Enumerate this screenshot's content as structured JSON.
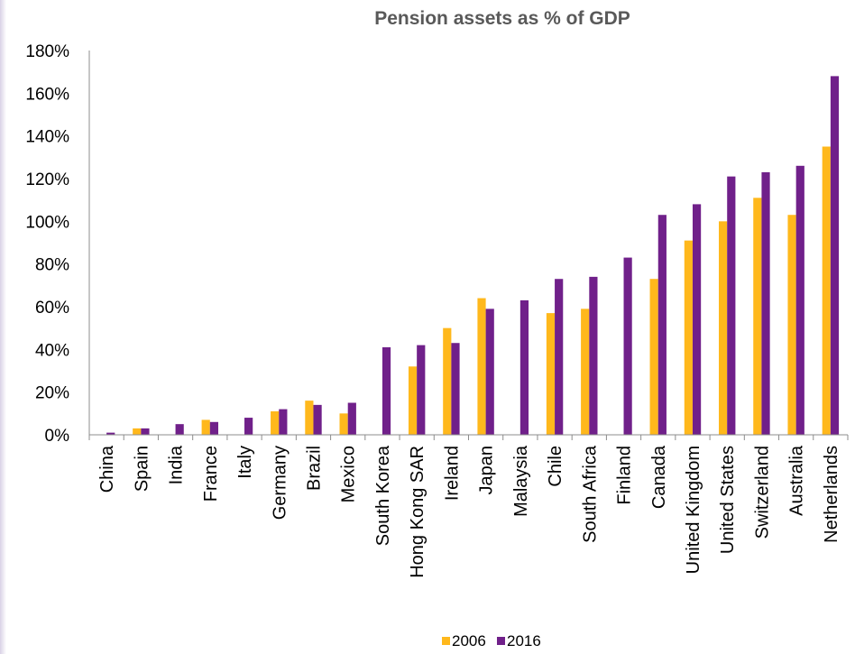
{
  "chart_data": {
    "type": "bar",
    "title": "Pension assets as % of GDP",
    "xlabel": "",
    "ylabel": "",
    "ylim": [
      0,
      180
    ],
    "y_ticks": [
      "0%",
      "20%",
      "40%",
      "60%",
      "80%",
      "100%",
      "120%",
      "140%",
      "160%",
      "180%"
    ],
    "y_tick_values": [
      0,
      20,
      40,
      60,
      80,
      100,
      120,
      140,
      160,
      180
    ],
    "categories": [
      "China",
      "Spain",
      "India",
      "France",
      "Italy",
      "Germany",
      "Brazil",
      "Mexico",
      "South Korea",
      "Hong Kong SAR",
      "Ireland",
      "Japan",
      "Malaysia",
      "Chile",
      "South Africa",
      "Finland",
      "Canada",
      "United Kingdom",
      "United States",
      "Switzerland",
      "Australia",
      "Netherlands"
    ],
    "series": [
      {
        "name": "2006",
        "color": "#FFB81C",
        "values": [
          0,
          3,
          0,
          7,
          0,
          11,
          16,
          10,
          0,
          32,
          50,
          64,
          0,
          57,
          59,
          0,
          73,
          91,
          100,
          111,
          103,
          135
        ]
      },
      {
        "name": "2016",
        "color": "#70208A",
        "values": [
          1,
          3,
          5,
          6,
          8,
          12,
          14,
          15,
          41,
          42,
          43,
          59,
          63,
          73,
          74,
          83,
          103,
          108,
          121,
          123,
          126,
          168
        ]
      }
    ],
    "legend_position": "bottom-center",
    "grid": false
  }
}
